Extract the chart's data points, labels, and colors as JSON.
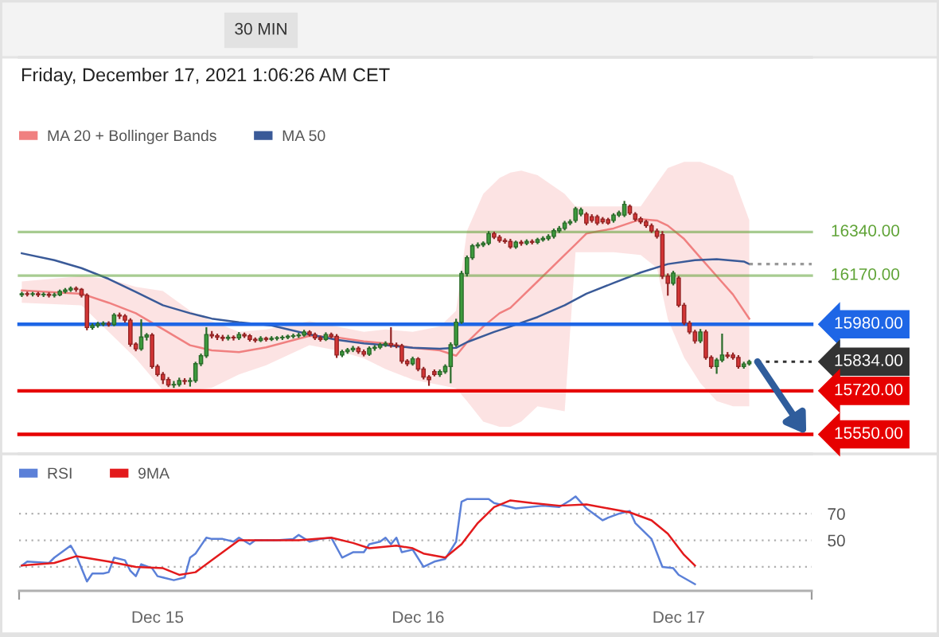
{
  "chart_data": [
    {
      "type": "candlestick",
      "title": "30 MIN",
      "subtitle": "Friday, December 17, 2021 1:06:26 AM CET",
      "x": [
        "2021-12-14T11:30",
        "2021-12-14T12:00",
        "2021-12-14T12:30",
        "2021-12-14T13:00",
        "2021-12-14T13:30",
        "2021-12-14T14:00",
        "2021-12-14T14:30",
        "2021-12-14T15:00",
        "2021-12-14T15:30",
        "2021-12-14T16:00",
        "2021-12-14T16:30",
        "2021-12-14T17:00",
        "2021-12-14T17:30",
        "2021-12-14T18:00",
        "2021-12-14T18:30",
        "2021-12-14T19:00",
        "2021-12-14T19:30",
        "2021-12-14T20:00",
        "2021-12-14T20:30",
        "2021-12-14T21:00",
        "2021-12-14T21:30",
        "2021-12-14T22:00",
        "2021-12-14T22:30",
        "2021-12-14T23:00",
        "2021-12-14T23:30",
        "2021-12-15T00:00",
        "2021-12-15T00:30",
        "2021-12-15T01:00",
        "2021-12-15T01:30",
        "2021-12-15T02:00",
        "2021-12-15T02:30",
        "2021-12-15T03:00",
        "2021-12-15T03:30",
        "2021-12-15T04:00",
        "2021-12-15T04:30",
        "2021-12-15T05:00",
        "2021-12-15T05:30",
        "2021-12-15T06:00",
        "2021-12-15T06:30",
        "2021-12-15T07:00",
        "2021-12-15T07:30",
        "2021-12-15T08:00",
        "2021-12-15T08:30",
        "2021-12-15T09:00",
        "2021-12-15T09:30",
        "2021-12-15T10:00",
        "2021-12-15T10:30",
        "2021-12-15T11:00",
        "2021-12-15T11:30",
        "2021-12-15T12:00",
        "2021-12-15T12:30",
        "2021-12-15T13:00",
        "2021-12-15T13:30",
        "2021-12-15T14:00",
        "2021-12-15T14:30",
        "2021-12-15T15:00",
        "2021-12-15T15:30",
        "2021-12-15T16:00",
        "2021-12-15T16:30",
        "2021-12-15T17:00",
        "2021-12-15T17:30",
        "2021-12-15T18:00",
        "2021-12-15T18:30",
        "2021-12-15T19:00",
        "2021-12-15T19:30",
        "2021-12-15T20:00",
        "2021-12-15T20:30",
        "2021-12-15T21:00",
        "2021-12-15T21:30",
        "2021-12-15T22:00",
        "2021-12-15T22:30",
        "2021-12-15T23:00",
        "2021-12-15T23:30",
        "2021-12-16T00:00",
        "2021-12-16T00:30",
        "2021-12-16T01:00",
        "2021-12-16T01:30",
        "2021-12-16T02:00",
        "2021-12-16T02:30",
        "2021-12-16T03:00",
        "2021-12-16T03:30",
        "2021-12-16T04:00",
        "2021-12-16T04:30",
        "2021-12-16T05:00",
        "2021-12-16T05:30",
        "2021-12-16T06:00",
        "2021-12-16T06:30",
        "2021-12-16T07:00",
        "2021-12-16T07:30",
        "2021-12-16T08:00",
        "2021-12-16T08:30",
        "2021-12-16T09:00",
        "2021-12-16T09:30",
        "2021-12-16T10:00",
        "2021-12-16T10:30",
        "2021-12-16T11:00",
        "2021-12-16T11:30",
        "2021-12-16T12:00",
        "2021-12-16T12:30",
        "2021-12-16T13:00",
        "2021-12-16T13:30",
        "2021-12-16T14:00",
        "2021-12-16T14:30",
        "2021-12-16T15:00",
        "2021-12-16T15:30",
        "2021-12-16T16:00",
        "2021-12-16T16:30",
        "2021-12-16T17:00",
        "2021-12-16T17:30",
        "2021-12-16T18:00",
        "2021-12-16T18:30",
        "2021-12-16T19:00",
        "2021-12-16T19:30",
        "2021-12-16T20:00",
        "2021-12-16T20:30",
        "2021-12-16T21:00",
        "2021-12-16T21:30",
        "2021-12-16T22:00",
        "2021-12-16T22:30",
        "2021-12-16T23:00",
        "2021-12-16T23:30",
        "2021-12-17T00:00",
        "2021-12-17T00:30",
        "2021-12-17T01:00",
        "2021-12-17T01:30",
        "2021-12-17T02:00",
        "2021-12-17T02:30",
        "2021-12-17T03:00",
        "2021-12-17T03:30",
        "2021-12-17T04:00",
        "2021-12-17T04:30",
        "2021-12-17T05:00",
        "2021-12-17T05:30",
        "2021-12-17T06:00",
        "2021-12-17T06:30"
      ],
      "ohlc": [
        [
          16095,
          16103,
          16090,
          16099
        ],
        [
          16099,
          16104,
          16092,
          16097
        ],
        [
          16097,
          16103,
          16092,
          16099
        ],
        [
          16099,
          16103,
          16090,
          16095
        ],
        [
          16095,
          16101,
          16090,
          16097
        ],
        [
          16097,
          16101,
          16088,
          16093
        ],
        [
          16093,
          16100,
          16088,
          16095
        ],
        [
          16095,
          16112,
          16093,
          16108
        ],
        [
          16108,
          16118,
          16104,
          16114
        ],
        [
          16114,
          16124,
          16110,
          16120
        ],
        [
          16120,
          16124,
          16110,
          16116
        ],
        [
          16116,
          16118,
          16088,
          16093
        ],
        [
          16093,
          16097,
          15960,
          15967
        ],
        [
          15967,
          15980,
          15962,
          15975
        ],
        [
          15975,
          15986,
          15970,
          15981
        ],
        [
          15981,
          15988,
          15976,
          15983
        ],
        [
          15983,
          15988,
          15974,
          15979
        ],
        [
          15979,
          16020,
          15976,
          16016
        ],
        [
          16016,
          16022,
          16004,
          16012
        ],
        [
          16012,
          16016,
          15990,
          15996
        ],
        [
          15996,
          16000,
          15896,
          15902
        ],
        [
          15902,
          15906,
          15878,
          15884
        ],
        [
          15884,
          15996,
          15880,
          15930
        ],
        [
          15930,
          15942,
          15920,
          15938
        ],
        [
          15938,
          15942,
          15810,
          15815
        ],
        [
          15815,
          15820,
          15780,
          15784
        ],
        [
          15784,
          15790,
          15750,
          15764
        ],
        [
          15764,
          15770,
          15738,
          15743
        ],
        [
          15743,
          15755,
          15735,
          15745
        ],
        [
          15745,
          15768,
          15740,
          15760
        ],
        [
          15760,
          15766,
          15748,
          15757
        ],
        [
          15757,
          15768,
          15740,
          15760
        ],
        [
          15760,
          15830,
          15755,
          15826
        ],
        [
          15826,
          15862,
          15820,
          15857
        ],
        [
          15857,
          15965,
          15852,
          15940
        ],
        [
          15940,
          15950,
          15928,
          15935
        ],
        [
          15935,
          15940,
          15922,
          15929
        ],
        [
          15929,
          15935,
          15918,
          15925
        ],
        [
          15925,
          15935,
          15920,
          15929
        ],
        [
          15929,
          15933,
          15920,
          15927
        ],
        [
          15927,
          15946,
          15922,
          15940
        ],
        [
          15940,
          15944,
          15930,
          15935
        ],
        [
          15935,
          15938,
          15916,
          15921
        ],
        [
          15921,
          15925,
          15912,
          15917
        ],
        [
          15917,
          15930,
          15914,
          15925
        ],
        [
          15925,
          15928,
          15916,
          15921
        ],
        [
          15921,
          15930,
          15918,
          15925
        ],
        [
          15925,
          15930,
          15920,
          15927
        ],
        [
          15927,
          15933,
          15922,
          15929
        ],
        [
          15929,
          15936,
          15925,
          15933
        ],
        [
          15933,
          15940,
          15928,
          15935
        ],
        [
          15935,
          15943,
          15930,
          15938
        ],
        [
          15938,
          15955,
          15935,
          15950
        ],
        [
          15950,
          15953,
          15936,
          15940
        ],
        [
          15940,
          15944,
          15922,
          15927
        ],
        [
          15927,
          15932,
          15916,
          15921
        ],
        [
          15921,
          15945,
          15918,
          15940
        ],
        [
          15940,
          15944,
          15928,
          15933
        ],
        [
          15933,
          15938,
          15852,
          15860
        ],
        [
          15860,
          15877,
          15855,
          15873
        ],
        [
          15873,
          15884,
          15868,
          15880
        ],
        [
          15880,
          15892,
          15875,
          15886
        ],
        [
          15886,
          15890,
          15868,
          15873
        ],
        [
          15873,
          15878,
          15858,
          15863
        ],
        [
          15863,
          15890,
          15860,
          15886
        ],
        [
          15886,
          15895,
          15880,
          15890
        ],
        [
          15890,
          15904,
          15886,
          15900
        ],
        [
          15900,
          15910,
          15895,
          15905
        ],
        [
          15905,
          15965,
          15892,
          15898
        ],
        [
          15898,
          15905,
          15890,
          15896
        ],
        [
          15896,
          15900,
          15830,
          15836
        ],
        [
          15836,
          15840,
          15820,
          15826
        ],
        [
          15826,
          15850,
          15822,
          15845
        ],
        [
          15845,
          15848,
          15800,
          15805
        ],
        [
          15805,
          15810,
          15768,
          15774
        ],
        [
          15774,
          15778,
          15743,
          15764
        ],
        [
          15795,
          15800,
          15780,
          15784
        ],
        [
          15784,
          15800,
          15778,
          15795
        ],
        [
          15795,
          15820,
          15790,
          15815
        ],
        [
          15815,
          15906,
          15753,
          15900
        ],
        [
          15900,
          15998,
          15895,
          15988
        ],
        [
          15988,
          16185,
          15985,
          16178
        ],
        [
          16178,
          16245,
          16170,
          16240
        ],
        [
          16240,
          16290,
          16235,
          16286
        ],
        [
          16286,
          16296,
          16280,
          16290
        ],
        [
          16290,
          16300,
          16285,
          16296
        ],
        [
          16296,
          16340,
          16292,
          16334
        ],
        [
          16334,
          16338,
          16316,
          16320
        ],
        [
          16320,
          16325,
          16302,
          16307
        ],
        [
          16307,
          16312,
          16298,
          16303
        ],
        [
          16303,
          16310,
          16278,
          16282
        ],
        [
          16282,
          16303,
          16278,
          16300
        ],
        [
          16300,
          16305,
          16290,
          16296
        ],
        [
          16296,
          16308,
          16292,
          16303
        ],
        [
          16303,
          16308,
          16295,
          16300
        ],
        [
          16300,
          16314,
          16296,
          16310
        ],
        [
          16310,
          16320,
          16306,
          16315
        ],
        [
          16315,
          16328,
          16310,
          16323
        ],
        [
          16323,
          16350,
          16318,
          16345
        ],
        [
          16345,
          16360,
          16340,
          16354
        ],
        [
          16354,
          16380,
          16350,
          16375
        ],
        [
          16375,
          16386,
          16370,
          16380
        ],
        [
          16385,
          16435,
          16380,
          16431
        ],
        [
          16410,
          16432,
          16405,
          16427
        ],
        [
          16410,
          16414,
          16370,
          16375
        ],
        [
          16400,
          16406,
          16380,
          16385
        ],
        [
          16400,
          16404,
          16370,
          16375
        ],
        [
          16390,
          16395,
          16375,
          16380
        ],
        [
          16388,
          16392,
          16372,
          16375
        ],
        [
          16385,
          16410,
          16380,
          16406
        ],
        [
          16406,
          16420,
          16402,
          16415
        ],
        [
          16406,
          16458,
          16402,
          16448
        ],
        [
          16440,
          16444,
          16410,
          16414
        ],
        [
          16410,
          16414,
          16385,
          16390
        ],
        [
          16392,
          16396,
          16375,
          16380
        ],
        [
          16380,
          16384,
          16360,
          16365
        ],
        [
          16365,
          16370,
          16340,
          16344
        ],
        [
          16344,
          16350,
          16318,
          16323
        ],
        [
          16330,
          16340,
          16160,
          16168
        ],
        [
          16168,
          16175,
          16095,
          16140
        ],
        [
          16140,
          16185,
          16135,
          16180
        ],
        [
          16160,
          16165,
          16050,
          16054
        ],
        [
          16054,
          16060,
          15980,
          15985
        ],
        [
          15985,
          15990,
          15945,
          15950
        ],
        [
          15950,
          15955,
          15908,
          15915
        ],
        [
          15915,
          15958,
          15910,
          15950
        ],
        [
          15950,
          15955,
          15845,
          15850
        ],
        [
          15850,
          15855,
          15810,
          15815
        ],
        [
          15815,
          15845,
          15790,
          15840
        ],
        [
          15840,
          15940,
          15835,
          15860
        ],
        [
          15860,
          15868,
          15850,
          15855
        ],
        [
          15860,
          15866,
          15845,
          15850
        ],
        [
          15850,
          15856,
          15810,
          15815
        ],
        [
          15815,
          15830,
          15810,
          15825
        ],
        [
          15826,
          15838,
          15822,
          15834
        ]
      ],
      "colors": [
        "#3d9b3d",
        "#d43535",
        "#3d9b3d",
        "#d43535",
        "#3d9b3d",
        "#d43535",
        "#3d9b3d",
        "#3d9b3d",
        "#3d9b3d",
        "#3d9b3d",
        "#d43535",
        "#d43535",
        "#d43535",
        "#3d9b3d",
        "#3d9b3d",
        "#3d9b3d",
        "#d43535",
        "#3d9b3d",
        "#d43535",
        "#d43535",
        "#d43535",
        "#d43535",
        "#3d9b3d",
        "#3d9b3d",
        "#d43535",
        "#d43535",
        "#d43535",
        "#d43535",
        "#3d9b3d",
        "#3d9b3d",
        "#d43535",
        "#3d9b3d",
        "#3d9b3d",
        "#3d9b3d",
        "#3d9b3d",
        "#d43535",
        "#d43535",
        "#d43535",
        "#3d9b3d",
        "#d43535",
        "#3d9b3d",
        "#d43535",
        "#d43535",
        "#d43535",
        "#3d9b3d",
        "#d43535",
        "#3d9b3d",
        "#3d9b3d",
        "#3d9b3d",
        "#3d9b3d",
        "#3d9b3d",
        "#3d9b3d",
        "#3d9b3d",
        "#d43535",
        "#d43535",
        "#d43535",
        "#3d9b3d",
        "#d43535",
        "#d43535",
        "#3d9b3d",
        "#3d9b3d",
        "#3d9b3d",
        "#d43535",
        "#d43535",
        "#3d9b3d",
        "#3d9b3d",
        "#3d9b3d",
        "#3d9b3d",
        "#d43535",
        "#d43535",
        "#d43535",
        "#d43535",
        "#3d9b3d",
        "#d43535",
        "#d43535",
        "#d43535",
        "#d43535",
        "#3d9b3d",
        "#3d9b3d",
        "#3d9b3d",
        "#3d9b3d",
        "#3d9b3d",
        "#3d9b3d",
        "#3d9b3d",
        "#3d9b3d",
        "#3d9b3d",
        "#3d9b3d",
        "#d43535",
        "#d43535",
        "#d43535",
        "#d43535",
        "#3d9b3d",
        "#d43535",
        "#3d9b3d",
        "#d43535",
        "#3d9b3d",
        "#3d9b3d",
        "#3d9b3d",
        "#3d9b3d",
        "#3d9b3d",
        "#3d9b3d",
        "#3d9b3d",
        "#3d9b3d",
        "#3d9b3d",
        "#d43535",
        "#d43535",
        "#d43535",
        "#d43535",
        "#d43535",
        "#3d9b3d",
        "#3d9b3d",
        "#3d9b3d",
        "#d43535",
        "#d43535",
        "#d43535",
        "#d43535",
        "#d43535",
        "#d43535",
        "#d43535",
        "#d43535",
        "#3d9b3d",
        "#d43535",
        "#d43535",
        "#d43535",
        "#d43535",
        "#3d9b3d",
        "#d43535",
        "#d43535",
        "#3d9b3d",
        "#3d9b3d",
        "#d43535",
        "#d43535",
        "#d43535",
        "#3d9b3d",
        "#3d9b3d"
      ],
      "series": [
        {
          "name": "MA 20 + Bollinger Bands",
          "type": "line",
          "color": "#f08080",
          "x": [
            "2021-12-14T11:30",
            "2021-12-14T17:00",
            "2021-12-14T19:30",
            "2021-12-14T22:00",
            "2021-12-15T00:30",
            "2021-12-15T03:00",
            "2021-12-15T05:00",
            "2021-12-15T07:30",
            "2021-12-15T10:00",
            "2021-12-15T14:00",
            "2021-12-15T16:30",
            "2021-12-15T19:00",
            "2021-12-15T21:00",
            "2021-12-15T23:30",
            "2021-12-16T02:00",
            "2021-12-16T03:30",
            "2021-12-16T04:30",
            "2021-12-16T06:00",
            "2021-12-16T07:30",
            "2021-12-16T08:30",
            "2021-12-16T09:30",
            "2021-12-16T11:00",
            "2021-12-16T13:30",
            "2021-12-16T14:30",
            "2021-12-16T15:30",
            "2021-12-16T18:00",
            "2021-12-16T20:30",
            "2021-12-16T22:00",
            "2021-12-16T23:00",
            "2021-12-17T00:30",
            "2021-12-17T02:00",
            "2021-12-17T03:30",
            "2021-12-17T05:00",
            "2021-12-17T06:30"
          ],
          "values": [
            16112,
            16099,
            16064,
            16023,
            15961,
            15898,
            15878,
            15871,
            15890,
            15935,
            15929,
            15913,
            15905,
            15888,
            15878,
            15857,
            15909,
            15971,
            16023,
            16044,
            16085,
            16147,
            16251,
            16292,
            16334,
            16354,
            16390,
            16385,
            16365,
            16313,
            16240,
            16168,
            16096,
            16002
          ],
          "lower": [
            16064,
            16054,
            15950,
            15847,
            15722,
            15722,
            15732,
            15784,
            15820,
            15898,
            15878,
            15847,
            15805,
            15764,
            15743,
            15730,
            15680,
            15600,
            15580,
            15580,
            15600,
            15660,
            15640,
            16261,
            16261,
            16261,
            16250,
            16200,
            16000,
            15850,
            15750,
            15680,
            15660,
            15660
          ],
          "upper": [
            16147,
            16168,
            16157,
            16126,
            16110,
            16033,
            15992,
            15950,
            15960,
            15992,
            15971,
            15950,
            15960,
            15950,
            15971,
            16033,
            16344,
            16489,
            16551,
            16572,
            16580,
            16562,
            16489,
            16440,
            16440,
            16440,
            16440,
            16531,
            16590,
            16614,
            16614,
            16590,
            16560,
            16386
          ]
        },
        {
          "name": "MA 50",
          "type": "line",
          "color": "#3a5a98",
          "x": [
            "2021-12-14T11:30",
            "2021-12-14T14:30",
            "2021-12-14T17:00",
            "2021-12-14T19:30",
            "2021-12-14T22:00",
            "2021-12-15T00:30",
            "2021-12-15T03:00",
            "2021-12-15T05:00",
            "2021-12-15T07:30",
            "2021-12-15T10:30",
            "2021-12-15T14:00",
            "2021-12-15T16:30",
            "2021-12-15T19:00",
            "2021-12-15T21:00",
            "2021-12-15T23:30",
            "2021-12-16T02:00",
            "2021-12-16T03:30",
            "2021-12-16T04:30",
            "2021-12-16T07:00",
            "2021-12-16T08:30",
            "2021-12-16T11:00",
            "2021-12-16T13:30",
            "2021-12-16T15:30",
            "2021-12-16T18:00",
            "2021-12-16T20:30",
            "2021-12-16T23:00",
            "2021-12-17T01:30",
            "2021-12-17T03:30",
            "2021-12-17T06:00",
            "2021-12-17T06:30"
          ],
          "values": [
            16257,
            16230,
            16199,
            16157,
            16106,
            16054,
            16023,
            16002,
            15988,
            15975,
            15940,
            15919,
            15905,
            15898,
            15888,
            15884,
            15888,
            15910,
            15950,
            15971,
            16008,
            16054,
            16099,
            16141,
            16182,
            16215,
            16230,
            16234,
            16225,
            16215
          ]
        },
        {
          "type": "line",
          "color": "#999999",
          "line_style": "dotted",
          "x": [
            "2021-12-17T06:30",
            "2021-12-17T12:15"
          ],
          "values": [
            16215,
            16215
          ]
        }
      ],
      "ref_lines": [
        {
          "axis": "y",
          "value": 16340,
          "label": "16340.00",
          "color": "#5fa336"
        },
        {
          "axis": "y",
          "value": 16170,
          "label": "16170.00",
          "color": "#5fa336"
        },
        {
          "axis": "y",
          "value": 15980,
          "label": "15980.00",
          "color": "#1e66e6"
        },
        {
          "axis": "y",
          "value": 15834,
          "label": "15834.00",
          "color": "#333333",
          "line_style": "dotted"
        },
        {
          "axis": "y",
          "value": 15720,
          "label": "15720.00",
          "color": "#e60000"
        },
        {
          "axis": "y",
          "value": 15550,
          "label": "15550.00",
          "color": "#e60000"
        }
      ],
      "xlim": [
        "2021-12-14T11:15",
        "2021-12-17T12:15"
      ],
      "ylim": [
        15474,
        17022
      ],
      "tick_labels": false,
      "legend": "top left"
    },
    {
      "type": "line",
      "series": [
        {
          "name": "RSI",
          "color": "#5b80d8",
          "x": [
            "2021-12-14T11:30",
            "2021-12-14T12:00",
            "2021-12-14T14:00",
            "2021-12-14T14:30",
            "2021-12-14T16:00",
            "2021-12-14T16:30",
            "2021-12-14T17:30",
            "2021-12-14T18:00",
            "2021-12-14T19:00",
            "2021-12-14T19:30",
            "2021-12-14T20:00",
            "2021-12-14T21:00",
            "2021-12-14T21:30",
            "2021-12-14T22:00",
            "2021-12-14T22:30",
            "2021-12-14T23:30",
            "2021-12-15T00:00",
            "2021-12-15T00:30",
            "2021-12-15T01:30",
            "2021-12-15T02:30",
            "2021-12-15T03:00",
            "2021-12-15T03:30",
            "2021-12-15T04:30",
            "2021-12-15T05:00",
            "2021-12-15T06:00",
            "2021-12-15T07:00",
            "2021-12-15T07:30",
            "2021-12-15T08:30",
            "2021-12-15T09:00",
            "2021-12-15T10:00",
            "2021-12-15T11:00",
            "2021-12-15T12:30",
            "2021-12-15T13:00",
            "2021-12-15T14:00",
            "2021-12-15T15:00",
            "2021-12-15T16:00",
            "2021-12-15T17:00",
            "2021-12-15T18:00",
            "2021-12-15T19:00",
            "2021-12-15T19:30",
            "2021-12-15T20:30",
            "2021-12-15T21:00",
            "2021-12-15T21:30",
            "2021-12-15T22:00",
            "2021-12-15T22:30",
            "2021-12-15T23:30",
            "2021-12-16T00:30",
            "2021-12-16T01:30",
            "2021-12-16T02:30",
            "2021-12-16T03:30",
            "2021-12-16T04:00",
            "2021-12-16T04:30",
            "2021-12-16T06:30",
            "2021-12-16T07:00",
            "2021-12-16T09:00",
            "2021-12-16T11:30",
            "2021-12-16T13:00",
            "2021-12-16T14:00",
            "2021-12-16T14:30",
            "2021-12-16T15:30",
            "2021-12-16T17:00",
            "2021-12-16T17:30",
            "2021-12-16T18:30",
            "2021-12-16T19:30",
            "2021-12-16T20:00",
            "2021-12-16T21:30",
            "2021-12-16T22:30",
            "2021-12-16T23:30",
            "2021-12-17T00:00",
            "2021-12-17T01:30"
          ],
          "values": [
            31,
            34,
            33,
            37,
            46,
            39,
            19,
            25,
            25,
            26,
            37,
            35,
            27,
            23,
            32,
            29,
            23,
            22,
            20,
            22,
            37,
            40,
            52,
            51,
            51,
            49,
            52,
            47,
            50,
            50,
            50,
            51,
            54,
            49,
            51,
            52,
            37,
            41,
            41,
            47,
            49,
            52,
            47,
            52,
            41,
            43,
            30,
            34,
            36,
            49,
            79,
            81,
            81,
            78,
            74,
            76,
            75,
            80,
            83,
            74,
            65,
            67,
            70,
            72,
            63,
            51,
            30,
            29,
            24,
            17
          ]
        },
        {
          "name": "9MA",
          "color": "#e31a1c",
          "x": [
            "2021-12-14T11:30",
            "2021-12-14T14:30",
            "2021-12-14T16:30",
            "2021-12-14T19:30",
            "2021-12-14T22:00",
            "2021-12-15T00:30",
            "2021-12-15T02:00",
            "2021-12-15T03:30",
            "2021-12-15T05:00",
            "2021-12-15T07:30",
            "2021-12-15T10:00",
            "2021-12-15T13:00",
            "2021-12-15T16:00",
            "2021-12-15T18:00",
            "2021-12-15T19:30",
            "2021-12-15T22:00",
            "2021-12-15T23:30",
            "2021-12-16T00:30",
            "2021-12-16T02:30",
            "2021-12-16T04:00",
            "2021-12-16T05:30",
            "2021-12-16T07:00",
            "2021-12-16T08:30",
            "2021-12-16T10:30",
            "2021-12-16T13:00",
            "2021-12-16T15:30",
            "2021-12-16T17:30",
            "2021-12-16T19:30",
            "2021-12-16T21:30",
            "2021-12-16T23:00",
            "2021-12-17T00:30",
            "2021-12-17T01:30"
          ],
          "values": [
            31,
            33,
            38,
            34,
            30,
            29,
            24,
            26,
            35,
            50,
            50,
            50,
            52,
            48,
            44,
            46,
            44,
            40,
            37,
            47,
            63,
            75,
            80,
            78,
            76,
            77,
            74,
            71,
            65,
            55,
            39,
            31
          ]
        }
      ],
      "xlim": [
        "2021-12-14T11:15",
        "2021-12-17T12:15"
      ],
      "ylim": [
        12,
        115
      ],
      "xticks": [
        {
          "value": "2021-12-14T11:15",
          "label": null
        },
        {
          "value": "2021-12-15",
          "label": "Dec 15"
        },
        {
          "value": "2021-12-16",
          "label": "Dec 16"
        },
        {
          "value": "2021-12-17",
          "label": "Dec 17"
        },
        {
          "value": "2021-12-17T12:15",
          "label": null
        }
      ],
      "yticks": [
        70,
        50,
        {
          "value": 30,
          "label": null
        }
      ],
      "grid": "y",
      "legend": "top left"
    }
  ]
}
